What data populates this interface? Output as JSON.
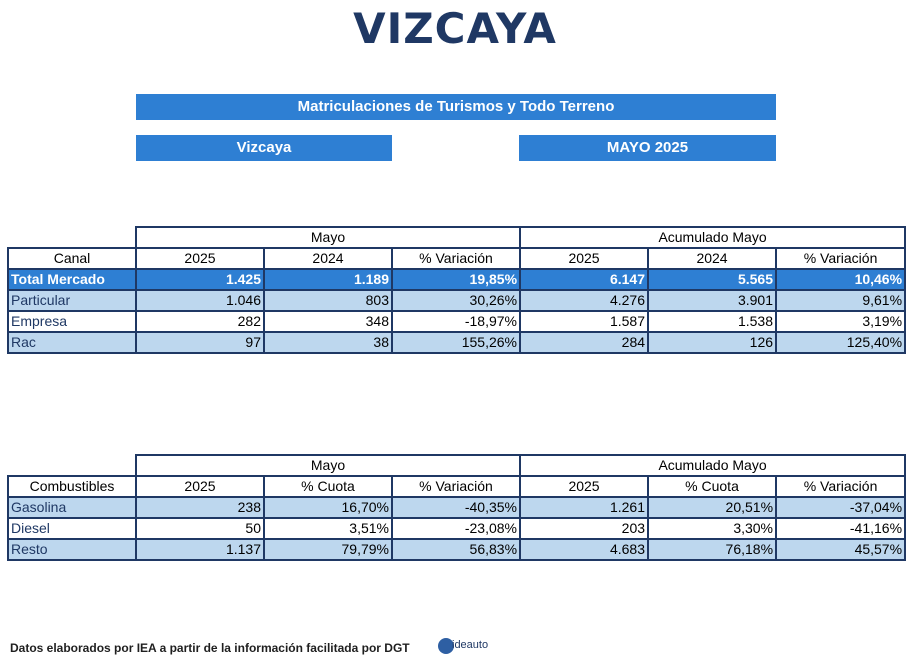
{
  "title": "VIZCAYA",
  "banner": "Matriculaciones de Turismos y Todo Terreno",
  "region_label": "Vizcaya",
  "period_label": "MAYO 2025",
  "table1": {
    "group_month": "Mayo",
    "group_cumulative": "Acumulado Mayo",
    "columns": [
      "Canal",
      "2025",
      "2024",
      "% Variación",
      "2025",
      "2024",
      "% Variación"
    ],
    "rows": [
      [
        "Total Mercado",
        "1.425",
        "1.189",
        "19,85%",
        "6.147",
        "5.565",
        "10,46%"
      ],
      [
        "Particular",
        "1.046",
        "803",
        "30,26%",
        "4.276",
        "3.901",
        "9,61%"
      ],
      [
        "Empresa",
        "282",
        "348",
        "-18,97%",
        "1.587",
        "1.538",
        "3,19%"
      ],
      [
        "Rac",
        "97",
        "38",
        "155,26%",
        "284",
        "126",
        "125,40%"
      ]
    ]
  },
  "table2": {
    "group_month": "Mayo",
    "group_cumulative": "Acumulado Mayo",
    "columns": [
      "Combustibles",
      "2025",
      "% Cuota",
      "% Variación",
      "2025",
      "% Cuota",
      "% Variación"
    ],
    "rows": [
      [
        "Gasolina",
        "238",
        "16,70%",
        "-40,35%",
        "1.261",
        "20,51%",
        "-37,04%"
      ],
      [
        "Diesel",
        "50",
        "3,51%",
        "-23,08%",
        "203",
        "3,30%",
        "-41,16%"
      ],
      [
        "Resto",
        "1.137",
        "79,79%",
        "56,83%",
        "4.683",
        "76,18%",
        "45,57%"
      ]
    ]
  },
  "footer": "Datos elaborados por IEA a partir de la información facilitada por DGT",
  "logo_text": "ideauto",
  "colors": {
    "title": "#1f3864",
    "bar": "#2e7fd3",
    "row_alt": "#bdd7ee",
    "border": "#1f3864"
  }
}
